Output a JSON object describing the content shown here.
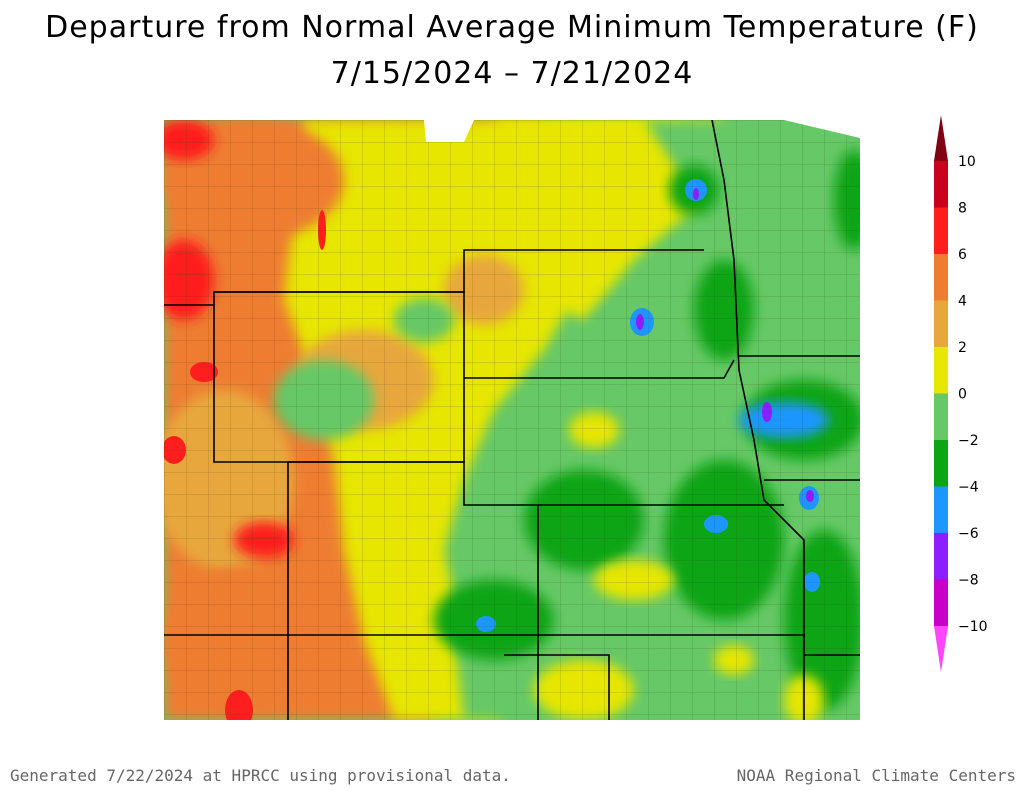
{
  "title": {
    "line1": "Departure from Normal Average Minimum Temperature (F)",
    "line2": "7/15/2024 – 7/21/2024"
  },
  "legend": {
    "labels": [
      "10",
      "8",
      "6",
      "4",
      "2",
      "0",
      "−2",
      "−4",
      "−6",
      "−8",
      "−10"
    ],
    "bands": [
      {
        "range": "8 to 10",
        "color": "#c8001e"
      },
      {
        "range": "6 to 8",
        "color": "#ff1e1e"
      },
      {
        "range": "4 to 6",
        "color": "#ee7d32"
      },
      {
        "range": "2 to 4",
        "color": "#e8a73c"
      },
      {
        "range": "0 to 2",
        "color": "#e6e600"
      },
      {
        "range": "-2 to 0",
        "color": "#66c866"
      },
      {
        "range": "-4 to -2",
        "color": "#0ea514"
      },
      {
        "range": "-6 to -4",
        "color": "#1e96ff"
      },
      {
        "range": "-8 to -6",
        "color": "#8c1eff"
      },
      {
        "range": "-10 to -8",
        "color": "#c800c8"
      }
    ],
    "top_arrow_color": "#820014",
    "bottom_arrow_color": "#ff46ff"
  },
  "footer": {
    "left": "Generated 7/22/2024 at HPRCC using provisional data.",
    "right": "NOAA Regional Climate Centers"
  }
}
